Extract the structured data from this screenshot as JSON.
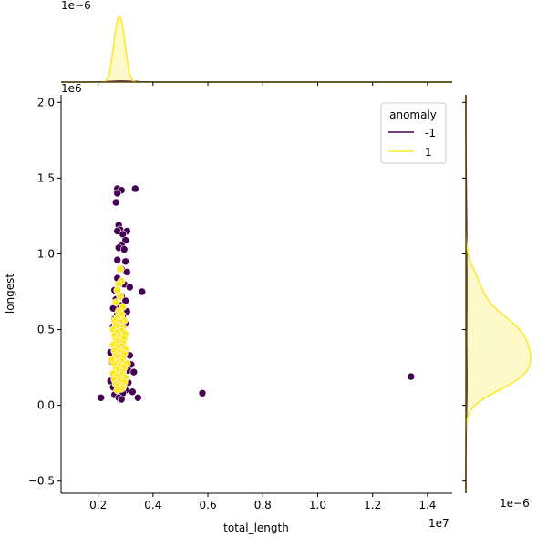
{
  "chart_data": {
    "type": "scatter",
    "title": "",
    "xlabel": "total_length",
    "ylabel": "longest",
    "x_scale_label": "1e7",
    "y_scale_label": "1e6",
    "xlim": [
      650000,
      14900000
    ],
    "ylim": [
      -580000,
      2050000
    ],
    "x_ticks": [
      2000000,
      4000000,
      6000000,
      8000000,
      10000000,
      12000000,
      14000000
    ],
    "x_tick_labels": [
      "0.2",
      "0.4",
      "0.6",
      "0.8",
      "1.0",
      "1.2",
      "1.4"
    ],
    "y_ticks": [
      -500000,
      0,
      500000,
      1000000,
      1500000,
      2000000
    ],
    "y_tick_labels": [
      "−0.5",
      "0.0",
      "0.5",
      "1.0",
      "1.5",
      "2.0"
    ],
    "top_marginal_scale_label": "1e−6",
    "right_marginal_scale_label": "1e−6",
    "grid": false,
    "legend": {
      "title": "anomaly",
      "placement": "top-right",
      "entries": [
        {
          "label": "-1",
          "color": "#440154"
        },
        {
          "label": "1",
          "color": "#fde725"
        }
      ]
    },
    "series": [
      {
        "name": "-1",
        "color": "#440154",
        "points": [
          [
            2700000,
            1430000
          ],
          [
            2850000,
            1420000
          ],
          [
            3350000,
            1430000
          ],
          [
            2700000,
            1400000
          ],
          [
            2650000,
            1340000
          ],
          [
            2750000,
            1190000
          ],
          [
            2800000,
            1160000
          ],
          [
            2700000,
            1150000
          ],
          [
            3050000,
            1150000
          ],
          [
            2900000,
            1130000
          ],
          [
            3000000,
            1090000
          ],
          [
            2850000,
            1060000
          ],
          [
            2750000,
            1040000
          ],
          [
            2950000,
            1030000
          ],
          [
            2700000,
            960000
          ],
          [
            3000000,
            950000
          ],
          [
            2850000,
            900000
          ],
          [
            3050000,
            880000
          ],
          [
            2700000,
            840000
          ],
          [
            2950000,
            800000
          ],
          [
            2600000,
            760000
          ],
          [
            3150000,
            780000
          ],
          [
            3600000,
            750000
          ],
          [
            2850000,
            720000
          ],
          [
            2650000,
            700000
          ],
          [
            3000000,
            690000
          ],
          [
            2800000,
            660000
          ],
          [
            2550000,
            640000
          ],
          [
            3050000,
            620000
          ],
          [
            2700000,
            600000
          ],
          [
            2900000,
            590000
          ],
          [
            2600000,
            570000
          ],
          [
            3000000,
            540000
          ],
          [
            2550000,
            520000
          ],
          [
            2450000,
            350000
          ],
          [
            3150000,
            330000
          ],
          [
            2500000,
            290000
          ],
          [
            3200000,
            270000
          ],
          [
            3100000,
            230000
          ],
          [
            3300000,
            220000
          ],
          [
            2600000,
            200000
          ],
          [
            2450000,
            160000
          ],
          [
            3100000,
            150000
          ],
          [
            2550000,
            120000
          ],
          [
            3000000,
            100000
          ],
          [
            2700000,
            90000
          ],
          [
            2900000,
            80000
          ],
          [
            3250000,
            90000
          ],
          [
            2600000,
            70000
          ],
          [
            2750000,
            50000
          ],
          [
            2850000,
            40000
          ],
          [
            2100000,
            50000
          ],
          [
            3450000,
            50000
          ],
          [
            5800000,
            80000
          ],
          [
            13400000,
            190000
          ]
        ]
      },
      {
        "name": "1",
        "color": "#fde725",
        "points": [
          [
            2800000,
            900000
          ],
          [
            2850000,
            820000
          ],
          [
            2750000,
            800000
          ],
          [
            2700000,
            760000
          ],
          [
            2800000,
            720000
          ],
          [
            2650000,
            680000
          ],
          [
            2900000,
            650000
          ],
          [
            2750000,
            620000
          ],
          [
            2850000,
            600000
          ],
          [
            2700000,
            580000
          ],
          [
            2600000,
            560000
          ],
          [
            2950000,
            560000
          ],
          [
            2800000,
            550000
          ],
          [
            2650000,
            530000
          ],
          [
            2750000,
            520000
          ],
          [
            2900000,
            510000
          ],
          [
            2550000,
            500000
          ],
          [
            2850000,
            490000
          ],
          [
            2700000,
            480000
          ],
          [
            3000000,
            470000
          ],
          [
            2600000,
            460000
          ],
          [
            2800000,
            450000
          ],
          [
            2950000,
            440000
          ],
          [
            2650000,
            430000
          ],
          [
            2750000,
            420000
          ],
          [
            2900000,
            410000
          ],
          [
            2550000,
            400000
          ],
          [
            2850000,
            390000
          ],
          [
            2700000,
            380000
          ],
          [
            3000000,
            370000
          ],
          [
            2600000,
            360000
          ],
          [
            2800000,
            350000
          ],
          [
            2950000,
            340000
          ],
          [
            2650000,
            330000
          ],
          [
            2750000,
            320000
          ],
          [
            2900000,
            310000
          ],
          [
            2500000,
            300000
          ],
          [
            2850000,
            290000
          ],
          [
            2700000,
            280000
          ],
          [
            3050000,
            275000
          ],
          [
            2600000,
            270000
          ],
          [
            2800000,
            260000
          ],
          [
            2950000,
            250000
          ],
          [
            2650000,
            240000
          ],
          [
            2750000,
            230000
          ],
          [
            2900000,
            220000
          ],
          [
            2550000,
            210000
          ],
          [
            2850000,
            200000
          ],
          [
            2700000,
            190000
          ],
          [
            3000000,
            180000
          ],
          [
            2600000,
            170000
          ],
          [
            2800000,
            160000
          ],
          [
            2950000,
            150000
          ],
          [
            2650000,
            140000
          ],
          [
            2750000,
            130000
          ],
          [
            2900000,
            120000
          ],
          [
            2850000,
            110000
          ],
          [
            2700000,
            100000
          ]
        ]
      }
    ]
  }
}
